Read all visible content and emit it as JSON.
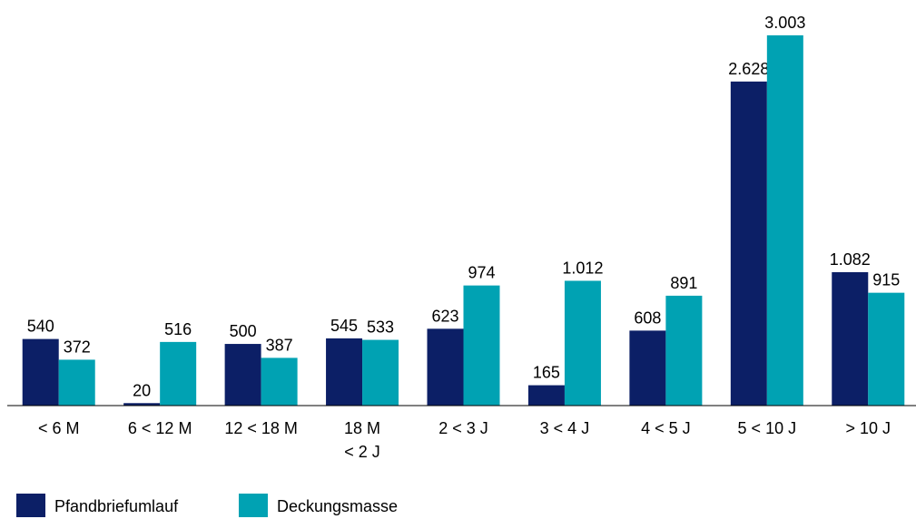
{
  "chart_data": {
    "type": "bar",
    "categories": [
      "< 6 M",
      "6 < 12 M",
      "12 < 18 M",
      "18 M\n< 2 J",
      "2 < 3 J",
      "3 < 4 J",
      "4 < 5 J",
      "5 < 10 J",
      "> 10 J"
    ],
    "series": [
      {
        "name": "Pfandbriefumlauf",
        "color": "#0c1f66",
        "values": [
          540,
          20,
          500,
          545,
          623,
          165,
          608,
          2628,
          1082
        ],
        "value_labels": [
          "540",
          "20",
          "500",
          "545",
          "623",
          "165",
          "608",
          "2.628",
          "1.082"
        ]
      },
      {
        "name": "Deckungsmasse",
        "color": "#00a2b3",
        "values": [
          372,
          516,
          387,
          533,
          974,
          1012,
          891,
          3003,
          915
        ],
        "value_labels": [
          "372",
          "516",
          "387",
          "533",
          "974",
          "1.012",
          "891",
          "3.003",
          "915"
        ]
      }
    ],
    "ylim": [
      0,
      3000
    ]
  }
}
